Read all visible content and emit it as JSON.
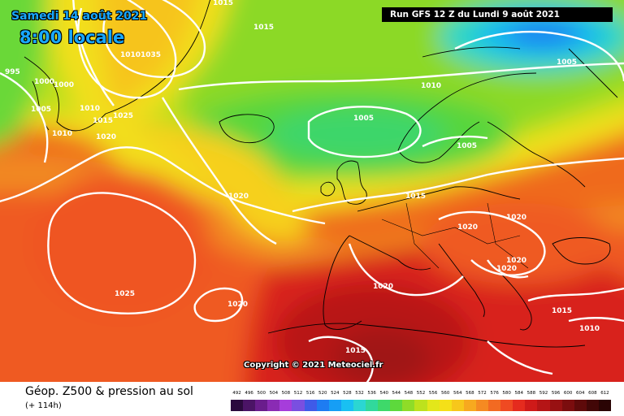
{
  "header": {
    "date_label": "Samedi 14 août 2021",
    "time_label": "8:00 locale",
    "run_label": "Run GFS 12 Z du Lundi 9 août 2021"
  },
  "copyright": "Copyright © 2021 Meteociel.fr",
  "footer": {
    "field_title": "Géop. Z500 & pression au sol",
    "forecast_hours": "(+ 114h)"
  },
  "legend": {
    "ticks": [
      "492",
      "496",
      "500",
      "504",
      "508",
      "512",
      "516",
      "520",
      "524",
      "528",
      "532",
      "536",
      "540",
      "544",
      "548",
      "552",
      "556",
      "560",
      "564",
      "568",
      "572",
      "576",
      "580",
      "584",
      "588",
      "592",
      "596",
      "600",
      "604",
      "608",
      "612"
    ],
    "colors": [
      "#2b0a3d",
      "#4b1466",
      "#6a1d8c",
      "#8a2bb4",
      "#a63ddb",
      "#7a4fe0",
      "#3f5be8",
      "#1e7cf2",
      "#169ef5",
      "#19c0f2",
      "#2bd6d2",
      "#31d99c",
      "#3ed96a",
      "#5dd93c",
      "#8fdc28",
      "#bde21d",
      "#e3e71a",
      "#f5e018",
      "#f7c71b",
      "#f7a91f",
      "#f58a22",
      "#f26a22",
      "#ef4a22",
      "#e52b1e",
      "#cf1a19",
      "#b51516",
      "#981112",
      "#7b0d0e",
      "#5e0a0a",
      "#420707",
      "#2a0404"
    ]
  },
  "map": {
    "isobar_labels": [
      "1015",
      "1015",
      "1010",
      "1035",
      "995",
      "1000",
      "1000",
      "1005",
      "1010",
      "1015",
      "1020",
      "1025",
      "1010",
      "1005",
      "1005",
      "1010",
      "1005",
      "1020",
      "1015",
      "1020",
      "1020",
      "1020",
      "1020",
      "1025",
      "1020",
      "1020",
      "1015",
      "1015",
      "1010"
    ]
  }
}
